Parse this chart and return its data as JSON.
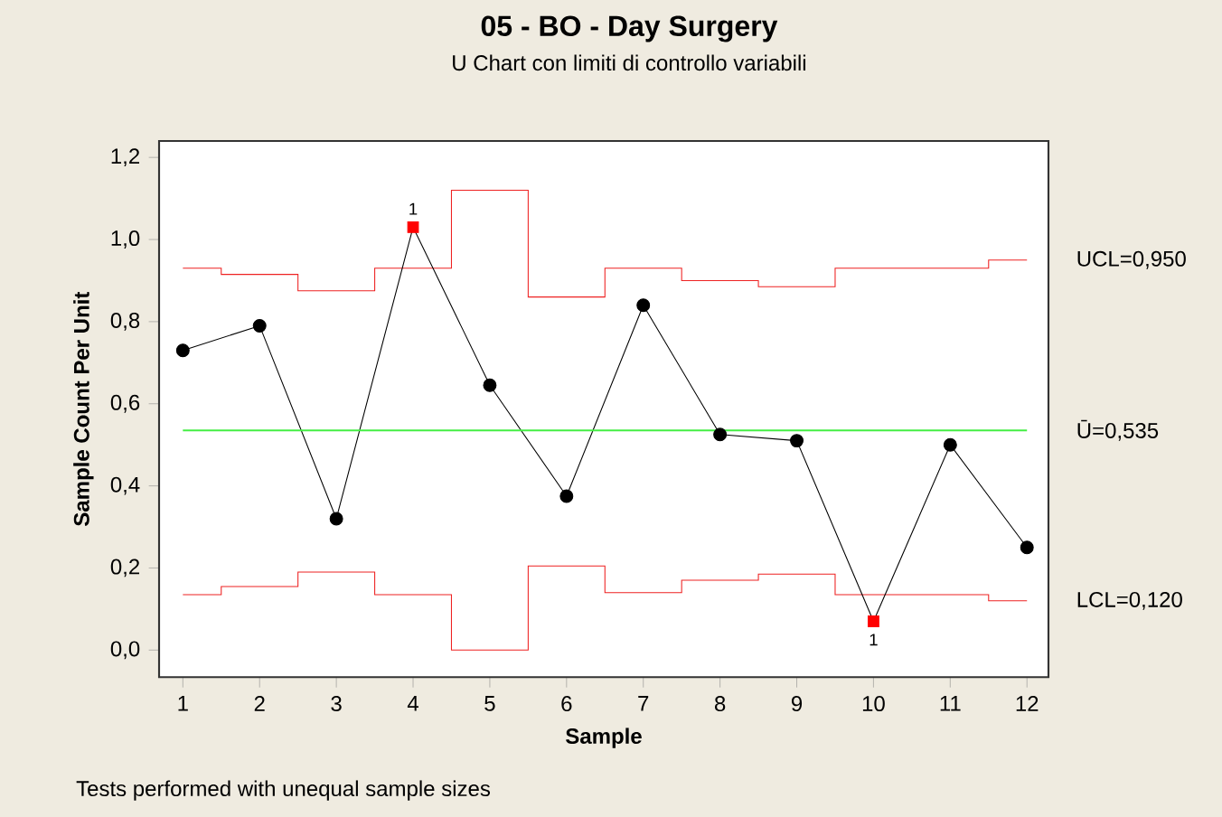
{
  "chart_data": {
    "type": "line",
    "title": "05 - BO - Day Surgery",
    "subtitle": "U Chart con limiti di controllo variabili",
    "xlabel": "Sample",
    "ylabel": "Sample Count Per Unit",
    "x": [
      1,
      2,
      3,
      4,
      5,
      6,
      7,
      8,
      9,
      10,
      11,
      12
    ],
    "series": [
      {
        "type": "step",
        "name": "UCL=0,950",
        "color": "#ee2222",
        "values": [
          0.93,
          0.915,
          0.875,
          0.93,
          1.12,
          0.86,
          0.93,
          0.9,
          0.885,
          0.93,
          0.93,
          0.95
        ]
      },
      {
        "type": "step",
        "name": "LCL=0,120",
        "color": "#ee2222",
        "values": [
          0.135,
          0.155,
          0.19,
          0.135,
          0.0,
          0.205,
          0.14,
          0.17,
          0.185,
          0.135,
          0.135,
          0.12
        ]
      },
      {
        "color": "#000000",
        "marker": "none",
        "values": [
          0.73,
          0.79,
          0.32,
          1.03,
          0.645,
          0.375,
          0.84,
          0.525,
          0.51,
          0.07,
          0.5,
          0.25
        ]
      },
      {
        "type": "scatter",
        "color": "#000000",
        "marker": "circle",
        "values": [
          0.73,
          0.79,
          0.32,
          null,
          0.645,
          0.375,
          0.84,
          0.525,
          0.51,
          null,
          0.5,
          0.25
        ]
      },
      {
        "type": "scatter",
        "color": "#ff0000",
        "marker": "square",
        "values": [
          null,
          null,
          null,
          1.03,
          null,
          null,
          null,
          null,
          null,
          0.07,
          null,
          null
        ]
      }
    ],
    "ref_lines": [
      {
        "axis": "y",
        "value": 0.535,
        "label": "Ū=0,535",
        "color": "#44ee44"
      }
    ],
    "annotations": [
      {
        "text": "1",
        "x": 4,
        "y": 1.03
      },
      {
        "text": "1",
        "x": 10,
        "y": 0.07
      },
      "Tests performed with unequal sample sizes"
    ],
    "xlim": [
      0.69,
      12.28
    ],
    "xticks": [
      1,
      2,
      3,
      4,
      5,
      6,
      7,
      8,
      9,
      10,
      11,
      12
    ],
    "ylim": [
      -0.066,
      1.24
    ],
    "yticks": [
      {
        "value": 0,
        "label": "0,0"
      },
      {
        "value": 0.2,
        "label": "0,2"
      },
      {
        "value": 0.4,
        "label": "0,4"
      },
      {
        "value": 0.6,
        "label": "0,6"
      },
      {
        "value": 0.8,
        "label": "0,8"
      },
      {
        "value": 1.0,
        "label": "1,0"
      },
      {
        "value": 1.2,
        "label": "1,2"
      }
    ]
  }
}
